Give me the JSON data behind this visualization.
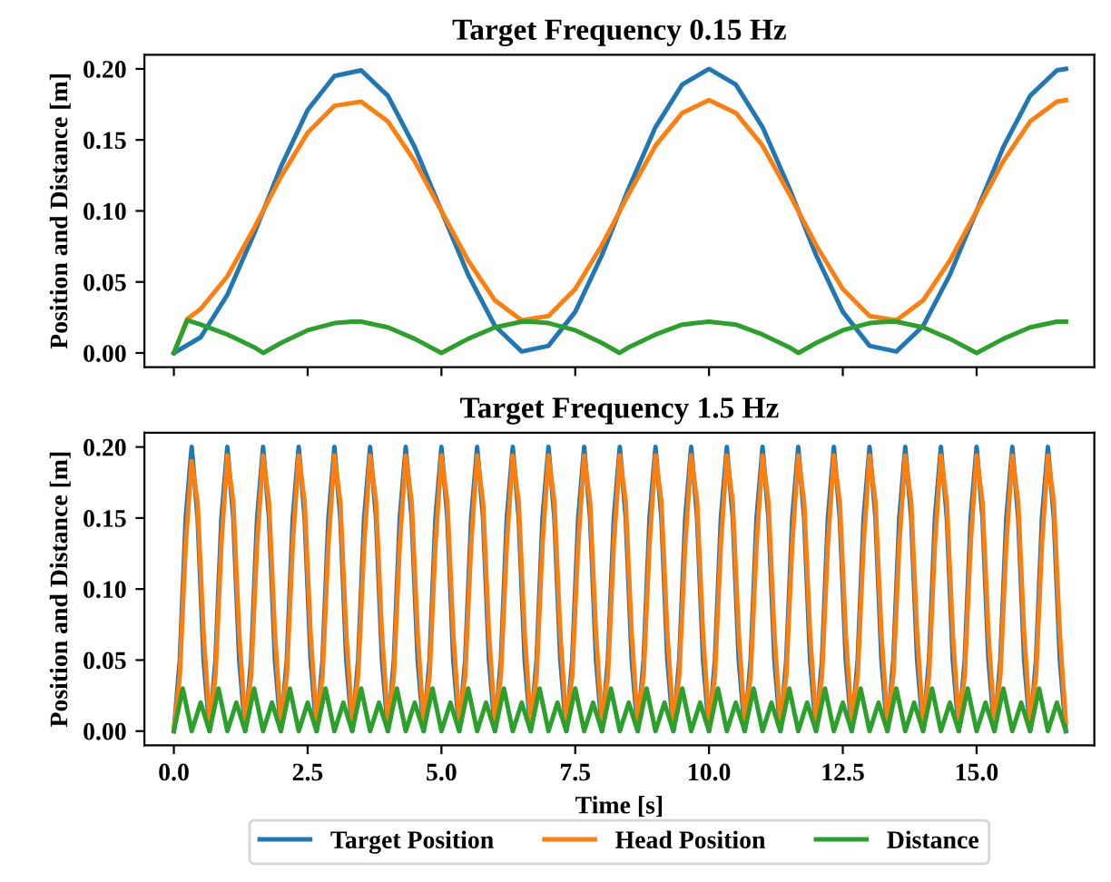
{
  "chart_data": [
    {
      "type": "line",
      "title": "Target Frequency 0.15 Hz",
      "ylabel": "Position and Distance [m]",
      "xlim": [
        -0.55,
        17.2
      ],
      "xticks": [
        {
          "value": 0,
          "label": null
        },
        {
          "value": 2.5,
          "label": null
        },
        {
          "value": 5,
          "label": null
        },
        {
          "value": 7.5,
          "label": null
        },
        {
          "value": 10,
          "label": null
        },
        {
          "value": 12.5,
          "label": null
        },
        {
          "value": 15,
          "label": null
        }
      ],
      "ylim": [
        -0.01,
        0.21
      ],
      "yticks": [
        {
          "value": 0,
          "label": "0.00"
        },
        {
          "value": 0.05,
          "label": "0.05"
        },
        {
          "value": 0.1,
          "label": "0.10"
        },
        {
          "value": 0.15,
          "label": "0.15"
        },
        {
          "value": 0.2,
          "label": "0.20"
        }
      ],
      "tick_labels": "y",
      "grid": false,
      "legend": false,
      "series": [
        {
          "color": "#1f77b4",
          "x": [
            0,
            0.5,
            1,
            1.5,
            2,
            2.5,
            3,
            3.5,
            4,
            4.5,
            5,
            5.5,
            6,
            6.5,
            7,
            7.5,
            8,
            8.5,
            9,
            9.5,
            10,
            10.5,
            11,
            11.5,
            12,
            12.5,
            13,
            13.5,
            14,
            14.5,
            15,
            15.5,
            16,
            16.5,
            16.67
          ],
          "values": [
            0,
            0.011,
            0.041,
            0.084,
            0.131,
            0.171,
            0.195,
            0.199,
            0.181,
            0.145,
            0.1,
            0.055,
            0.019,
            0.001,
            0.005,
            0.029,
            0.069,
            0.116,
            0.159,
            0.189,
            0.2,
            0.189,
            0.159,
            0.116,
            0.069,
            0.029,
            0.005,
            0.001,
            0.019,
            0.055,
            0.1,
            0.145,
            0.181,
            0.199,
            0.2
          ]
        },
        {
          "color": "#ff7f0e",
          "x": [
            0,
            0.25,
            0.5,
            1,
            1.5,
            2,
            2.5,
            3,
            3.5,
            4,
            4.5,
            5,
            5.5,
            6,
            6.5,
            7,
            7.5,
            8,
            8.5,
            9,
            9.5,
            10,
            10.5,
            11,
            11.5,
            12,
            12.5,
            13,
            13.5,
            14,
            14.5,
            15,
            15.5,
            16,
            16.5,
            16.67
          ],
          "values": [
            0,
            0.024,
            0.031,
            0.054,
            0.088,
            0.124,
            0.155,
            0.174,
            0.177,
            0.163,
            0.135,
            0.1,
            0.065,
            0.037,
            0.023,
            0.026,
            0.045,
            0.076,
            0.112,
            0.146,
            0.169,
            0.178,
            0.169,
            0.146,
            0.112,
            0.076,
            0.045,
            0.026,
            0.023,
            0.037,
            0.065,
            0.1,
            0.135,
            0.163,
            0.177,
            0.178
          ]
        },
        {
          "color": "#2ca02c",
          "x": [
            0,
            0.25,
            0.5,
            1,
            1.5,
            1.67,
            2,
            2.5,
            3,
            3.33,
            3.5,
            4,
            4.5,
            5,
            5.5,
            6,
            6.5,
            6.67,
            7,
            7.5,
            8,
            8.33,
            8.5,
            9,
            9.5,
            10,
            10.5,
            11,
            11.5,
            11.67,
            12,
            12.5,
            13,
            13.33,
            13.5,
            14,
            14.5,
            15,
            15.5,
            16,
            16.5,
            16.67
          ],
          "values": [
            0,
            0.023,
            0.02,
            0.013,
            0.004,
            0,
            0.007,
            0.016,
            0.021,
            0.022,
            0.022,
            0.018,
            0.01,
            0,
            0.01,
            0.018,
            0.022,
            0.022,
            0.021,
            0.016,
            0.007,
            0,
            0.004,
            0.013,
            0.02,
            0.022,
            0.02,
            0.013,
            0.004,
            0,
            0.007,
            0.016,
            0.021,
            0.022,
            0.022,
            0.018,
            0.01,
            0,
            0.01,
            0.018,
            0.022,
            0.022
          ]
        }
      ]
    },
    {
      "type": "line",
      "title": "Target Frequency 1.5 Hz",
      "ylabel": "Position and Distance [m]",
      "xlabel": "Time [s]",
      "xlim": [
        -0.55,
        17.2
      ],
      "xticks": [
        {
          "value": 0,
          "label": "0.0"
        },
        {
          "value": 2.5,
          "label": "2.5"
        },
        {
          "value": 5,
          "label": "5.0"
        },
        {
          "value": 7.5,
          "label": "7.5"
        },
        {
          "value": 10,
          "label": "10.0"
        },
        {
          "value": 12.5,
          "label": "12.5"
        },
        {
          "value": 15,
          "label": "15.0"
        }
      ],
      "ylim": [
        -0.01,
        0.21
      ],
      "yticks": [
        {
          "value": 0,
          "label": "0.00"
        },
        {
          "value": 0.05,
          "label": "0.05"
        },
        {
          "value": 0.1,
          "label": "0.10"
        },
        {
          "value": 0.15,
          "label": "0.15"
        },
        {
          "value": 0.2,
          "label": "0.20"
        }
      ],
      "grid": false,
      "legend": "bottom",
      "x": [
        0,
        0.111,
        0.222,
        0.333,
        0.444,
        0.556,
        0.667,
        0.778,
        0.889,
        1,
        1.111,
        1.222,
        1.333,
        1.444,
        1.556,
        1.667,
        1.778,
        1.889,
        2,
        2.111,
        2.222,
        2.333,
        2.444,
        2.556,
        2.667,
        2.778,
        2.889,
        3,
        3.111,
        3.222,
        3.333,
        3.444,
        3.556,
        3.667,
        3.778,
        3.889,
        4,
        4.111,
        4.222,
        4.333,
        4.444,
        4.556,
        4.667,
        4.778,
        4.889,
        5,
        5.111,
        5.222,
        5.333,
        5.444,
        5.556,
        5.667,
        5.778,
        5.889,
        6,
        6.111,
        6.222,
        6.333,
        6.444,
        6.556,
        6.667,
        6.778,
        6.889,
        7,
        7.111,
        7.222,
        7.333,
        7.444,
        7.556,
        7.667,
        7.778,
        7.889,
        8,
        8.111,
        8.222,
        8.333,
        8.444,
        8.556,
        8.667,
        8.778,
        8.889,
        9,
        9.111,
        9.222,
        9.333,
        9.444,
        9.556,
        9.667,
        9.778,
        9.889,
        10,
        10.111,
        10.222,
        10.333,
        10.444,
        10.556,
        10.667,
        10.778,
        10.889,
        11,
        11.111,
        11.222,
        11.333,
        11.444,
        11.556,
        11.667,
        11.778,
        11.889,
        12,
        12.111,
        12.222,
        12.333,
        12.444,
        12.556,
        12.667,
        12.778,
        12.889,
        13,
        13.111,
        13.222,
        13.333,
        13.444,
        13.556,
        13.667,
        13.778,
        13.889,
        14,
        14.111,
        14.222,
        14.333,
        14.444,
        14.556,
        14.667,
        14.778,
        14.889,
        15,
        15.111,
        15.222,
        15.333,
        15.444,
        15.556,
        15.667,
        15.778,
        15.889,
        16,
        16.111,
        16.222,
        16.333,
        16.444,
        16.556,
        16.667
      ],
      "series": [
        {
          "name": "Target Position",
          "color": "#1f77b4",
          "values": [
            0,
            0.05,
            0.15,
            0.2,
            0.15,
            0.05,
            0,
            0.05,
            0.15,
            0.2,
            0.15,
            0.05,
            0,
            0.05,
            0.15,
            0.2,
            0.15,
            0.05,
            0,
            0.05,
            0.15,
            0.2,
            0.15,
            0.05,
            0,
            0.05,
            0.15,
            0.2,
            0.15,
            0.05,
            0,
            0.05,
            0.15,
            0.2,
            0.15,
            0.05,
            0,
            0.05,
            0.15,
            0.2,
            0.15,
            0.05,
            0,
            0.05,
            0.15,
            0.2,
            0.15,
            0.05,
            0,
            0.05,
            0.15,
            0.2,
            0.15,
            0.05,
            0,
            0.05,
            0.15,
            0.2,
            0.15,
            0.05,
            0,
            0.05,
            0.15,
            0.2,
            0.15,
            0.05,
            0,
            0.05,
            0.15,
            0.2,
            0.15,
            0.05,
            0,
            0.05,
            0.15,
            0.2,
            0.15,
            0.05,
            0,
            0.05,
            0.15,
            0.2,
            0.15,
            0.05,
            0,
            0.05,
            0.15,
            0.2,
            0.15,
            0.05,
            0,
            0.05,
            0.15,
            0.2,
            0.15,
            0.05,
            0,
            0.05,
            0.15,
            0.2,
            0.15,
            0.05,
            0,
            0.05,
            0.15,
            0.2,
            0.15,
            0.05,
            0,
            0.05,
            0.15,
            0.2,
            0.15,
            0.05,
            0,
            0.05,
            0.15,
            0.2,
            0.15,
            0.05,
            0,
            0.05,
            0.15,
            0.2,
            0.15,
            0.05,
            0,
            0.05,
            0.15,
            0.2,
            0.15,
            0.05,
            0,
            0.05,
            0.15,
            0.2,
            0.15,
            0.05,
            0,
            0.05,
            0.15,
            0.2,
            0.15,
            0.05,
            0,
            0.05,
            0.15,
            0.2,
            0.15,
            0.05,
            0
          ]
        },
        {
          "name": "Head Position",
          "color": "#ff7f0e",
          "values": [
            0,
            0.039,
            0.132,
            0.19,
            0.161,
            0.068,
            0.006,
            0.039,
            0.132,
            0.194,
            0.161,
            0.068,
            0.006,
            0.039,
            0.132,
            0.194,
            0.161,
            0.068,
            0.006,
            0.039,
            0.132,
            0.194,
            0.161,
            0.068,
            0.006,
            0.039,
            0.132,
            0.194,
            0.161,
            0.068,
            0.006,
            0.039,
            0.132,
            0.194,
            0.161,
            0.068,
            0.006,
            0.039,
            0.132,
            0.194,
            0.161,
            0.068,
            0.006,
            0.039,
            0.132,
            0.194,
            0.161,
            0.068,
            0.006,
            0.039,
            0.132,
            0.194,
            0.161,
            0.068,
            0.006,
            0.039,
            0.132,
            0.194,
            0.161,
            0.068,
            0.006,
            0.039,
            0.132,
            0.194,
            0.161,
            0.068,
            0.006,
            0.039,
            0.132,
            0.194,
            0.161,
            0.068,
            0.006,
            0.039,
            0.132,
            0.194,
            0.161,
            0.068,
            0.006,
            0.039,
            0.132,
            0.194,
            0.161,
            0.068,
            0.006,
            0.039,
            0.132,
            0.194,
            0.161,
            0.068,
            0.006,
            0.039,
            0.132,
            0.194,
            0.161,
            0.068,
            0.006,
            0.039,
            0.132,
            0.194,
            0.161,
            0.068,
            0.006,
            0.039,
            0.132,
            0.194,
            0.161,
            0.068,
            0.006,
            0.039,
            0.132,
            0.194,
            0.161,
            0.068,
            0.006,
            0.039,
            0.132,
            0.194,
            0.161,
            0.068,
            0.006,
            0.039,
            0.132,
            0.194,
            0.161,
            0.068,
            0.006,
            0.039,
            0.132,
            0.194,
            0.161,
            0.068,
            0.006,
            0.039,
            0.132,
            0.194,
            0.161,
            0.068,
            0.006,
            0.039,
            0.132,
            0.194,
            0.161,
            0.068,
            0.006,
            0.039,
            0.132,
            0.194,
            0.161,
            0.068,
            0.006
          ]
        },
        {
          "name": "Distance",
          "color": "#2ca02c",
          "x": [
            0,
            0.167,
            0.333,
            0.5,
            0.667,
            0.833,
            1,
            1.167,
            1.333,
            1.5,
            1.667,
            1.833,
            2,
            2.167,
            2.333,
            2.5,
            2.667,
            2.833,
            3,
            3.167,
            3.333,
            3.5,
            3.667,
            3.833,
            4,
            4.167,
            4.333,
            4.5,
            4.667,
            4.833,
            5,
            5.167,
            5.333,
            5.5,
            5.667,
            5.833,
            6,
            6.167,
            6.333,
            6.5,
            6.667,
            6.833,
            7,
            7.167,
            7.333,
            7.5,
            7.667,
            7.833,
            8,
            8.167,
            8.333,
            8.5,
            8.667,
            8.833,
            9,
            9.167,
            9.333,
            9.5,
            9.667,
            9.833,
            10,
            10.167,
            10.333,
            10.5,
            10.667,
            10.833,
            11,
            11.167,
            11.333,
            11.5,
            11.667,
            11.833,
            12,
            12.167,
            12.333,
            12.5,
            12.667,
            12.833,
            13,
            13.167,
            13.333,
            13.5,
            13.667,
            13.833,
            14,
            14.167,
            14.333,
            14.5,
            14.667,
            14.833,
            15,
            15.167,
            15.333,
            15.5,
            15.667,
            15.833,
            16,
            16.167,
            16.333,
            16.5,
            16.667
          ],
          "values": [
            0,
            0.03,
            0,
            0.02,
            0,
            0.03,
            0,
            0.02,
            0,
            0.03,
            0,
            0.02,
            0,
            0.03,
            0,
            0.02,
            0,
            0.03,
            0,
            0.02,
            0,
            0.03,
            0,
            0.02,
            0,
            0.03,
            0,
            0.02,
            0,
            0.03,
            0,
            0.02,
            0,
            0.03,
            0,
            0.02,
            0,
            0.03,
            0,
            0.02,
            0,
            0.03,
            0,
            0.02,
            0,
            0.03,
            0,
            0.02,
            0,
            0.03,
            0,
            0.02,
            0,
            0.03,
            0,
            0.02,
            0,
            0.03,
            0,
            0.02,
            0,
            0.03,
            0,
            0.02,
            0,
            0.03,
            0,
            0.02,
            0,
            0.03,
            0,
            0.02,
            0,
            0.03,
            0,
            0.02,
            0,
            0.03,
            0,
            0.02,
            0,
            0.03,
            0,
            0.02,
            0,
            0.03,
            0,
            0.02,
            0,
            0.03,
            0,
            0.02,
            0,
            0.03,
            0,
            0.02,
            0,
            0.03,
            0,
            0.02,
            0
          ]
        }
      ]
    }
  ]
}
